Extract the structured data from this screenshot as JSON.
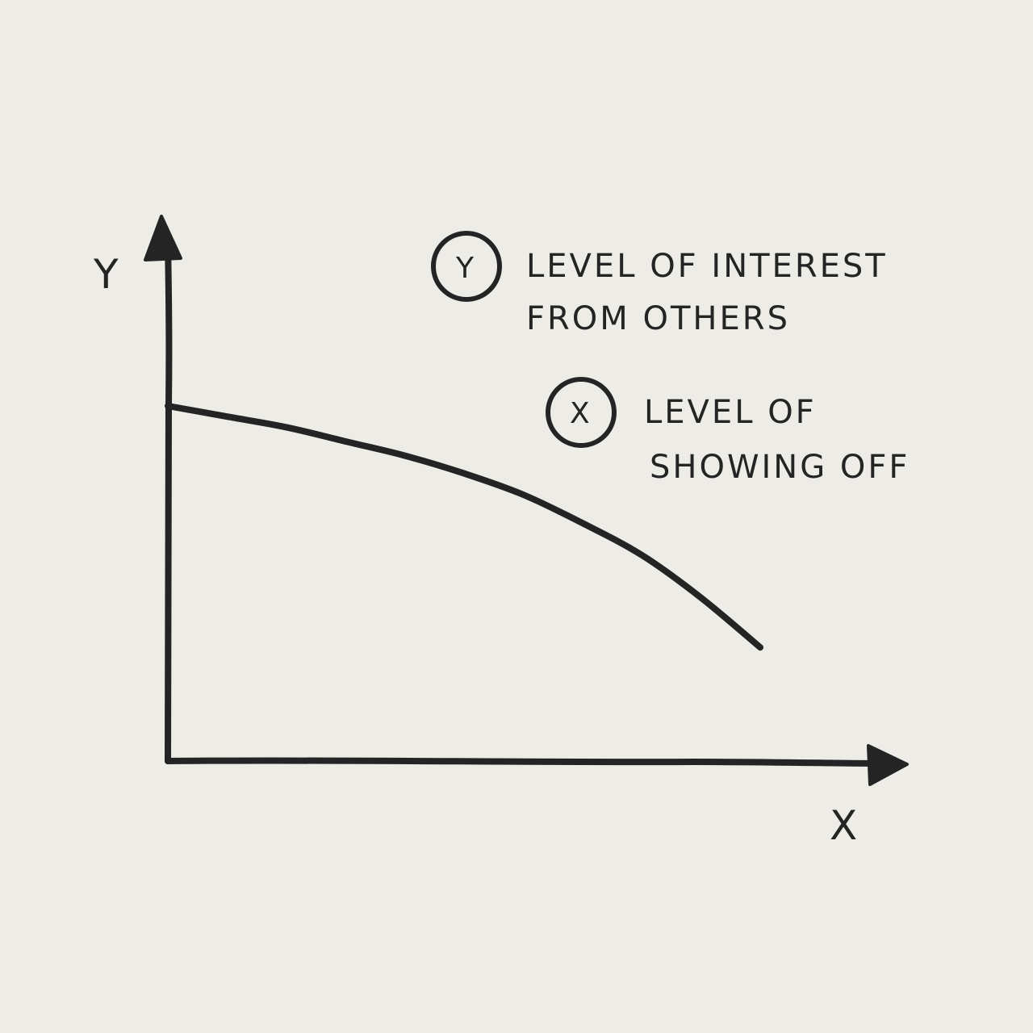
{
  "colors": {
    "paper": "#eeece7",
    "ink": "#242424"
  },
  "chart_data": {
    "type": "line",
    "xlabel": "X",
    "ylabel": "Y",
    "xlim": [
      0,
      1
    ],
    "ylim": [
      0,
      1
    ],
    "grid": false,
    "legend_placement": "top-right",
    "legend": [
      {
        "symbol": "Y",
        "lines": [
          "LEVEL OF INTEREST",
          "FROM OTHERS"
        ]
      },
      {
        "symbol": "X",
        "lines": [
          "LEVEL OF",
          "SHOWING OFF"
        ]
      }
    ],
    "series": [
      {
        "x": [
          0,
          0.1,
          0.2,
          0.3,
          0.4,
          0.5,
          0.6,
          0.7,
          0.8,
          0.9,
          1.0
        ],
        "y": [
          1.0,
          0.97,
          0.94,
          0.9,
          0.86,
          0.81,
          0.75,
          0.67,
          0.58,
          0.46,
          0.32
        ]
      }
    ]
  }
}
